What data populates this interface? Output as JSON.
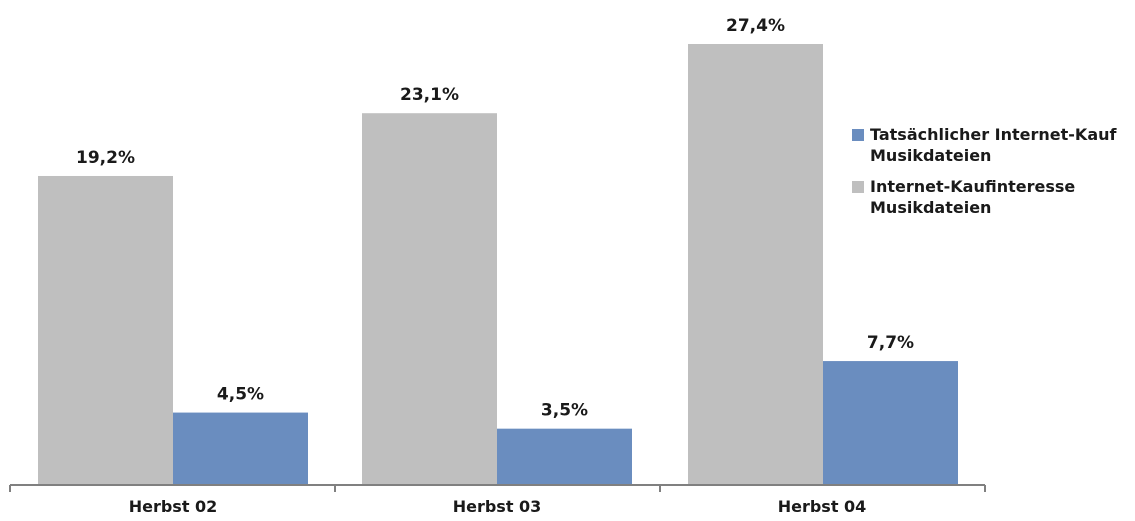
{
  "chart_data": {
    "type": "bar",
    "categories": [
      "Herbst 02",
      "Herbst 03",
      "Herbst 04"
    ],
    "series": [
      {
        "name": "Internet-Kaufinteresse Musikdateien",
        "color": "#bfbfbf",
        "values": [
          19.2,
          23.1,
          27.4
        ],
        "labels": [
          "19,2%",
          "23,1%",
          "27,4%"
        ]
      },
      {
        "name": "Tatsächlicher Internet-Kauf Musikdateien",
        "color": "#6a8dbf",
        "values": [
          4.5,
          3.5,
          7.7
        ],
        "labels": [
          "4,5%",
          "3,5%",
          "7,7%"
        ]
      }
    ],
    "legend": {
      "position": "right",
      "items": [
        {
          "line1": "Tatsächlicher Internet-Kauf",
          "line2": "Musikdateien",
          "color": "#6a8dbf"
        },
        {
          "line1": "Internet-Kaufinteresse",
          "line2": "Musikdateien",
          "color": "#bfbfbf"
        }
      ]
    },
    "ylim": [
      0,
      30
    ],
    "grid": false,
    "title": "",
    "xlabel": "",
    "ylabel": ""
  }
}
